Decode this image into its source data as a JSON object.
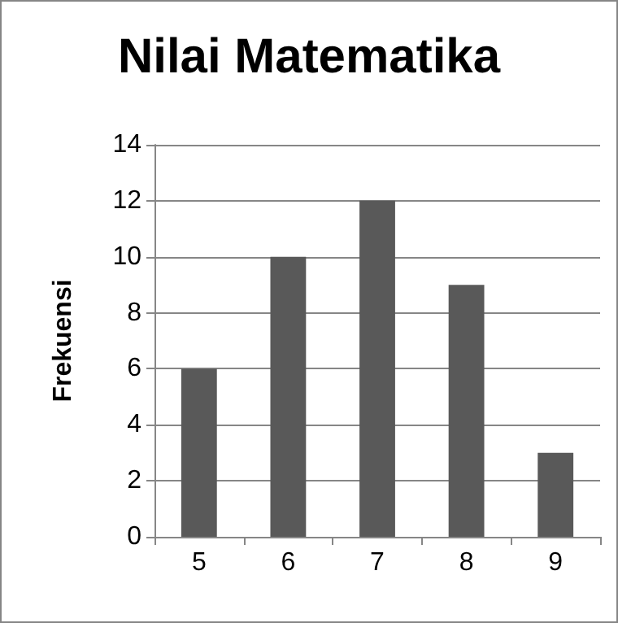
{
  "chart_data": {
    "type": "bar",
    "title": "Nilai Matematika",
    "ylabel": "Frekuensi",
    "categories": [
      "5",
      "6",
      "7",
      "8",
      "9"
    ],
    "values": [
      6,
      10,
      12,
      9,
      3
    ],
    "color": "#595959",
    "ylim": [
      0,
      14
    ],
    "yticks": [
      0,
      2,
      4,
      6,
      8,
      10,
      12,
      14
    ],
    "grid": "y"
  }
}
